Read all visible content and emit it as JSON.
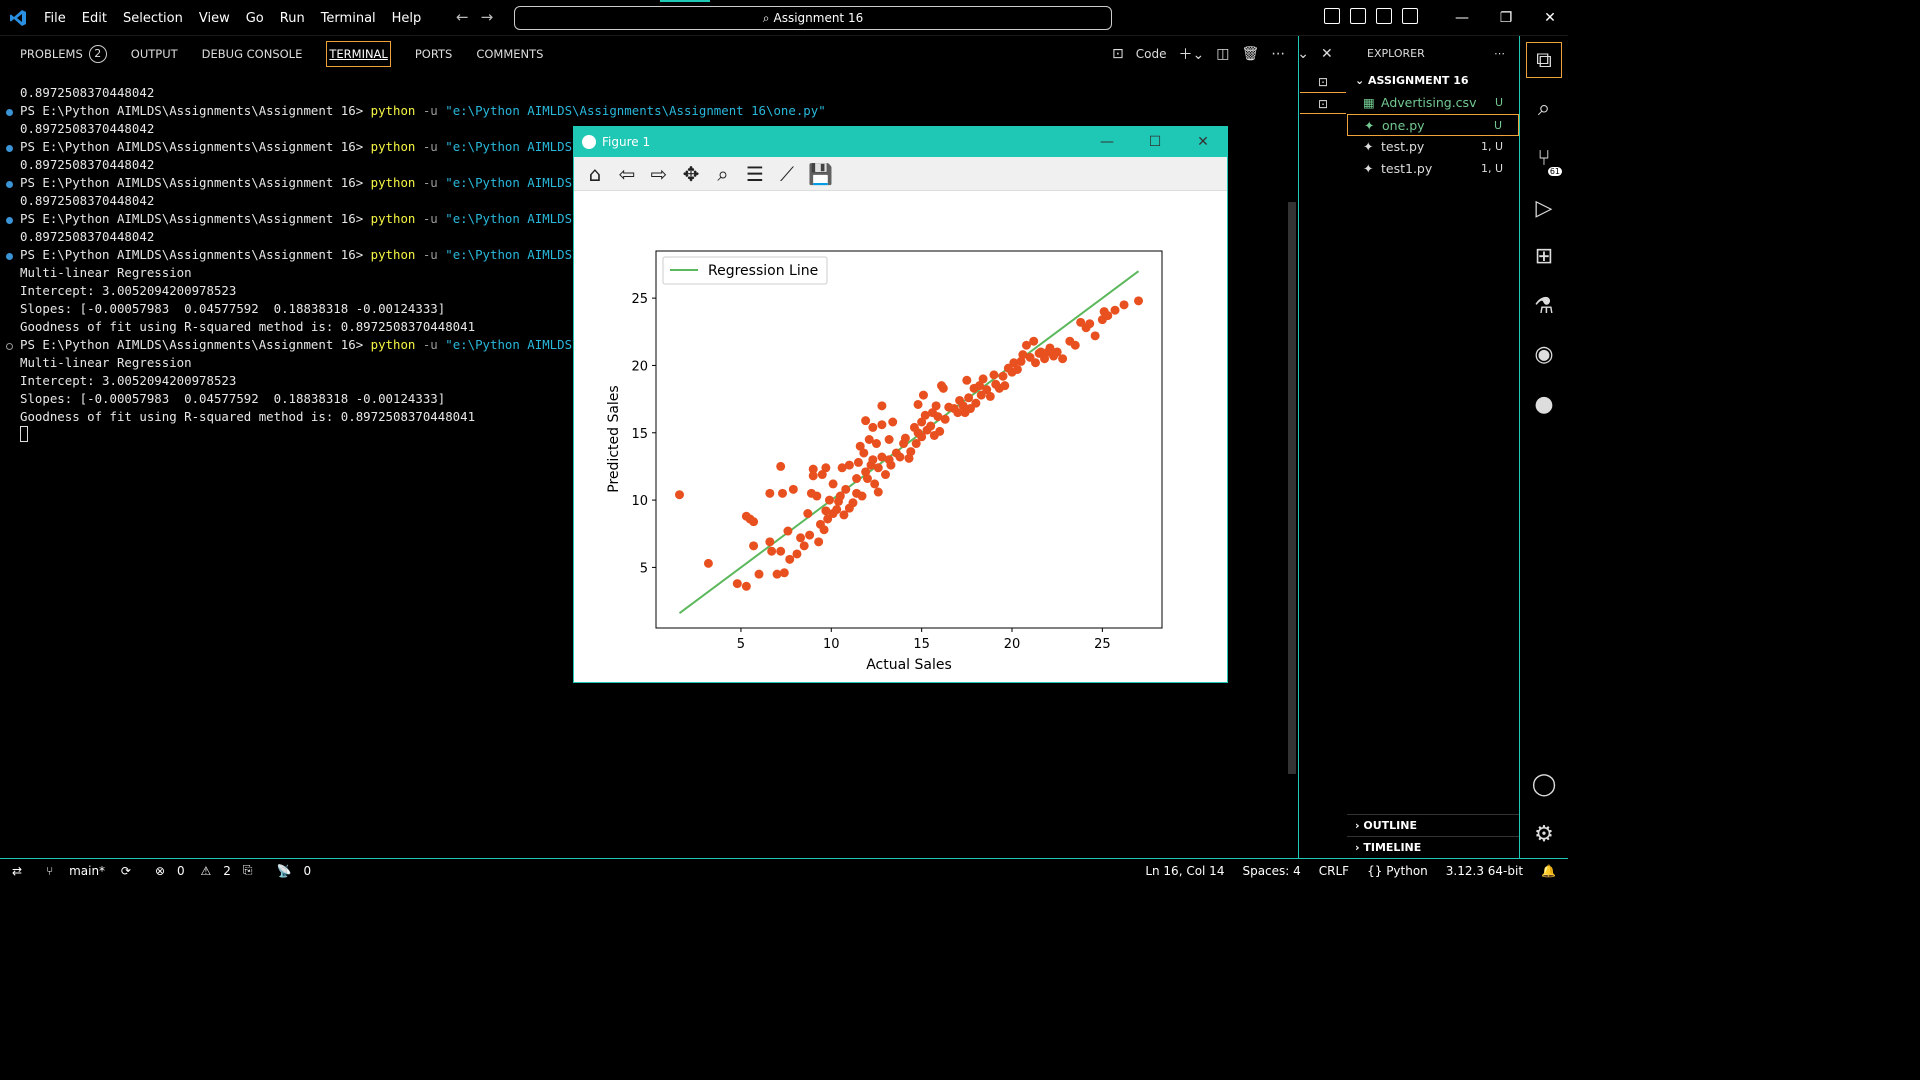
{
  "titlebar": {
    "menu": [
      "File",
      "Edit",
      "Selection",
      "View",
      "Go",
      "Run",
      "Terminal",
      "Help"
    ],
    "search": "Assignment 16"
  },
  "panel": {
    "tabs": [
      "PROBLEMS",
      "OUTPUT",
      "DEBUG CONSOLE",
      "TERMINAL",
      "PORTS",
      "COMMENTS"
    ],
    "problems_count": "2",
    "terminal_name": "Code"
  },
  "terminal": {
    "prompt": "PS E:\\Python AIMLDS\\Assignments\\Assignment 16> ",
    "cmd": "python",
    "flag": " -u ",
    "path": "\"e:\\Python AIMLDS\\Assignments\\Assignment 16\\one.py\"",
    "path_short": "\"e:\\Python AIMLDS\\",
    "r2_line": "0.8972508370448042",
    "title_line": "Multi-linear Regression",
    "intercept_line": "Intercept: 3.0052094200978523",
    "slopes_line": "Slopes: [-0.00057983  0.04577592  0.18838318 -0.00124333]",
    "goodness_line": "Goodness of fit using R-squared method is: 0.8972508370448041"
  },
  "figure": {
    "title": "Figure 1"
  },
  "chart_data": {
    "type": "scatter",
    "xlabel": "Actual Sales",
    "ylabel": "Predicted Sales",
    "xlim": [
      0.3,
      28.3
    ],
    "ylim": [
      0.5,
      28.5
    ],
    "xticks": [
      5,
      10,
      15,
      20,
      25
    ],
    "yticks": [
      5,
      10,
      15,
      20,
      25
    ],
    "legend": "Regression Line",
    "legend_position": "top-left",
    "line": {
      "x": [
        1.6,
        27.0
      ],
      "y": [
        1.6,
        27.0
      ],
      "color": "#5cb85c"
    },
    "point_color": "#e8501f",
    "points": [
      [
        1.6,
        10.4
      ],
      [
        3.2,
        5.3
      ],
      [
        4.8,
        3.8
      ],
      [
        5.3,
        3.6
      ],
      [
        5.3,
        8.8
      ],
      [
        5.5,
        8.6
      ],
      [
        5.7,
        8.4
      ],
      [
        5.7,
        6.6
      ],
      [
        6.0,
        4.5
      ],
      [
        6.6,
        10.5
      ],
      [
        6.6,
        6.9
      ],
      [
        6.7,
        6.2
      ],
      [
        7.0,
        4.5
      ],
      [
        7.2,
        6.2
      ],
      [
        7.2,
        12.5
      ],
      [
        7.4,
        4.6
      ],
      [
        7.3,
        10.5
      ],
      [
        7.6,
        7.7
      ],
      [
        7.7,
        5.6
      ],
      [
        7.9,
        10.8
      ],
      [
        8.1,
        6.0
      ],
      [
        8.3,
        7.2
      ],
      [
        8.5,
        6.6
      ],
      [
        8.7,
        9.0
      ],
      [
        8.8,
        7.4
      ],
      [
        8.9,
        10.5
      ],
      [
        9.0,
        11.8
      ],
      [
        9.0,
        12.3
      ],
      [
        9.2,
        10.3
      ],
      [
        9.3,
        6.9
      ],
      [
        9.4,
        8.2
      ],
      [
        9.5,
        11.9
      ],
      [
        9.6,
        7.8
      ],
      [
        9.7,
        9.2
      ],
      [
        9.8,
        8.6
      ],
      [
        9.7,
        12.4
      ],
      [
        9.9,
        10.0
      ],
      [
        10.1,
        9.0
      ],
      [
        10.1,
        11.2
      ],
      [
        10.3,
        9.3
      ],
      [
        10.4,
        9.9
      ],
      [
        10.5,
        10.3
      ],
      [
        10.6,
        12.4
      ],
      [
        10.7,
        8.9
      ],
      [
        10.8,
        10.8
      ],
      [
        11.0,
        12.6
      ],
      [
        11.0,
        9.4
      ],
      [
        11.2,
        9.8
      ],
      [
        11.4,
        10.5
      ],
      [
        11.4,
        11.6
      ],
      [
        11.5,
        12.8
      ],
      [
        11.6,
        14.0
      ],
      [
        11.7,
        10.3
      ],
      [
        11.8,
        13.5
      ],
      [
        11.9,
        12.1
      ],
      [
        11.9,
        15.9
      ],
      [
        12.0,
        11.6
      ],
      [
        12.1,
        14.5
      ],
      [
        12.2,
        12.6
      ],
      [
        12.3,
        13.0
      ],
      [
        12.3,
        15.4
      ],
      [
        12.4,
        11.2
      ],
      [
        12.5,
        14.2
      ],
      [
        12.6,
        12.4
      ],
      [
        12.6,
        10.6
      ],
      [
        12.8,
        13.2
      ],
      [
        12.8,
        15.6
      ],
      [
        12.8,
        17.0
      ],
      [
        13.0,
        11.9
      ],
      [
        13.2,
        13.0
      ],
      [
        13.2,
        14.5
      ],
      [
        13.3,
        12.6
      ],
      [
        13.4,
        15.8
      ],
      [
        13.6,
        13.5
      ],
      [
        13.8,
        13.2
      ],
      [
        14.0,
        14.2
      ],
      [
        14.1,
        14.6
      ],
      [
        14.3,
        13.1
      ],
      [
        14.4,
        13.6
      ],
      [
        14.6,
        15.4
      ],
      [
        14.7,
        14.2
      ],
      [
        14.8,
        15.0
      ],
      [
        14.8,
        17.1
      ],
      [
        15.0,
        15.8
      ],
      [
        15.0,
        14.7
      ],
      [
        15.1,
        17.8
      ],
      [
        15.2,
        16.3
      ],
      [
        15.3,
        15.2
      ],
      [
        15.5,
        15.5
      ],
      [
        15.6,
        16.5
      ],
      [
        15.7,
        14.8
      ],
      [
        15.8,
        17.0
      ],
      [
        15.9,
        16.2
      ],
      [
        16.0,
        15.1
      ],
      [
        16.1,
        18.5
      ],
      [
        16.2,
        18.3
      ],
      [
        16.3,
        16.0
      ],
      [
        16.5,
        16.9
      ],
      [
        16.8,
        16.8
      ],
      [
        17.0,
        16.5
      ],
      [
        17.1,
        17.4
      ],
      [
        17.3,
        17.0
      ],
      [
        17.4,
        16.5
      ],
      [
        17.5,
        18.9
      ],
      [
        17.6,
        17.6
      ],
      [
        17.7,
        16.8
      ],
      [
        17.9,
        18.3
      ],
      [
        18.0,
        17.2
      ],
      [
        18.2,
        18.5
      ],
      [
        18.3,
        17.8
      ],
      [
        18.4,
        19.0
      ],
      [
        18.6,
        18.2
      ],
      [
        18.8,
        17.7
      ],
      [
        19.0,
        19.3
      ],
      [
        19.1,
        18.6
      ],
      [
        19.3,
        18.3
      ],
      [
        19.5,
        19.2
      ],
      [
        19.6,
        18.5
      ],
      [
        19.8,
        19.8
      ],
      [
        20.0,
        19.5
      ],
      [
        20.1,
        20.2
      ],
      [
        20.3,
        19.7
      ],
      [
        20.5,
        20.3
      ],
      [
        20.6,
        20.8
      ],
      [
        20.8,
        21.5
      ],
      [
        21.0,
        20.6
      ],
      [
        21.2,
        21.8
      ],
      [
        21.3,
        20.2
      ],
      [
        21.5,
        20.9
      ],
      [
        21.6,
        21.0
      ],
      [
        21.8,
        20.5
      ],
      [
        22.0,
        21.0
      ],
      [
        22.1,
        21.3
      ],
      [
        22.3,
        20.7
      ],
      [
        22.5,
        21.0
      ],
      [
        22.8,
        20.5
      ],
      [
        23.2,
        21.8
      ],
      [
        23.5,
        21.5
      ],
      [
        23.8,
        23.2
      ],
      [
        24.1,
        22.8
      ],
      [
        24.3,
        23.1
      ],
      [
        24.6,
        22.2
      ],
      [
        25.0,
        23.4
      ],
      [
        25.1,
        24.0
      ],
      [
        25.3,
        23.7
      ],
      [
        25.7,
        24.1
      ],
      [
        26.2,
        24.5
      ],
      [
        27.0,
        24.8
      ]
    ]
  },
  "explorer": {
    "header": "EXPLORER",
    "folder": "ASSIGNMENT 16",
    "files": [
      {
        "name": "Advertising.csv",
        "status": "U"
      },
      {
        "name": "one.py",
        "status": "U"
      },
      {
        "name": "test.py",
        "status": "1, U"
      },
      {
        "name": "test1.py",
        "status": "1, U"
      }
    ],
    "outline": "OUTLINE",
    "timeline": "TIMELINE"
  },
  "activity": {
    "scm_badge": "61"
  },
  "status": {
    "branch": "main*",
    "errors": "0",
    "warnings": "2",
    "ports": "0",
    "position": "Ln 16, Col 14",
    "spaces": "Spaces: 4",
    "eol": "CRLF",
    "language": "Python",
    "interpreter": "3.12.3 64-bit"
  },
  "colors": {
    "accent": "#1fc7b5",
    "focus": "#f0a33a"
  }
}
